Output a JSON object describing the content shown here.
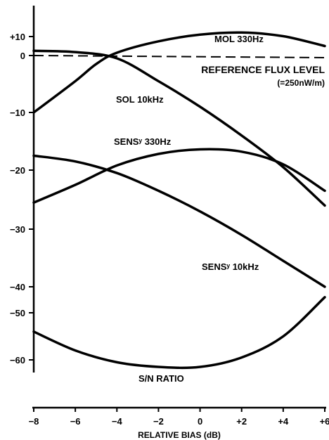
{
  "chart_data": {
    "type": "line",
    "title": "",
    "xlabel": "RELATIVE BIAS (dB)",
    "ylabel": "",
    "xlim": [
      -8,
      6
    ],
    "ylim": [
      -60,
      10
    ],
    "x_ticks": [
      -8,
      -6,
      -4,
      -2,
      0,
      2,
      4,
      6
    ],
    "x_tick_labels": [
      "−8",
      "−6",
      "−4",
      "−2",
      "0",
      "+2",
      "+4",
      "+6"
    ],
    "y_ticks": [
      10,
      0,
      -10,
      -20,
      -30,
      -40,
      -50,
      -60
    ],
    "y_tick_labels": [
      "+10",
      "0",
      "−10",
      "−20",
      "−30",
      "−40",
      "−50",
      "−60"
    ],
    "reference_line": {
      "y": 0,
      "label": "REFERENCE FLUX LEVEL",
      "sublabel": "(=250nW/m)"
    },
    "series": [
      {
        "name": "MOL 330Hz",
        "points": [
          [
            -8,
            -10
          ],
          [
            -6,
            -4.5
          ],
          [
            -5,
            -1.5
          ],
          [
            -4,
            1.5
          ],
          [
            -2,
            7.5
          ],
          [
            0,
            11.0
          ],
          [
            2,
            12.1
          ],
          [
            4,
            10.2
          ],
          [
            6,
            5.0
          ]
        ]
      },
      {
        "name": "SOL 10kHz",
        "points": [
          [
            -8,
            2.5
          ],
          [
            -6,
            1.8
          ],
          [
            -4,
            -0.5
          ],
          [
            -2,
            -4.5
          ],
          [
            0,
            -9.0
          ],
          [
            2,
            -14.0
          ],
          [
            4,
            -19.5
          ],
          [
            6,
            -26.0
          ]
        ]
      },
      {
        "name": "SENSʸ 330Hz",
        "points": [
          [
            -8,
            -25.5
          ],
          [
            -6,
            -22.5
          ],
          [
            -4,
            -19.2
          ],
          [
            -2,
            -17.2
          ],
          [
            0,
            -16.4
          ],
          [
            2,
            -16.8
          ],
          [
            4,
            -19.0
          ],
          [
            6,
            -23.5
          ]
        ]
      },
      {
        "name": "SENSʸ 10kHz",
        "points": [
          [
            -8,
            -17.5
          ],
          [
            -6,
            -18.5
          ],
          [
            -4,
            -20.5
          ],
          [
            -2,
            -23.5
          ],
          [
            0,
            -27.0
          ],
          [
            2,
            -31.0
          ],
          [
            4,
            -35.5
          ],
          [
            6,
            -40.0
          ]
        ]
      },
      {
        "name": "S/N RATIO",
        "points": [
          [
            -8,
            -54.0
          ],
          [
            -6,
            -58.0
          ],
          [
            -4,
            -60.5
          ],
          [
            -2,
            -61.5
          ],
          [
            0,
            -61.5
          ],
          [
            2,
            -59.5
          ],
          [
            4,
            -55.0
          ],
          [
            6,
            -44.0
          ]
        ]
      }
    ]
  }
}
